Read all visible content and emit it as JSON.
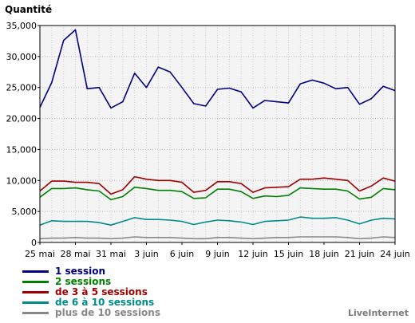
{
  "chart_data": {
    "type": "line",
    "title": "",
    "ylabel": "Quantité",
    "xlabel": "",
    "ylim": [
      0,
      35000
    ],
    "yticks": [
      0,
      5000,
      10000,
      15000,
      20000,
      25000,
      30000,
      35000
    ],
    "ytick_labels": [
      "0",
      "5,000",
      "10,000",
      "15,000",
      "20,000",
      "25,000",
      "30,000",
      "35,000"
    ],
    "x": [
      "25 mai",
      "26 mai",
      "27 mai",
      "28 mai",
      "29 mai",
      "30 mai",
      "31 mai",
      "1 juin",
      "2 juin",
      "3 juin",
      "4 juin",
      "5 juin",
      "6 juin",
      "7 juin",
      "8 juin",
      "9 juin",
      "10 juin",
      "11 juin",
      "12 juin",
      "13 juin",
      "14 juin",
      "15 juin",
      "16 juin",
      "17 juin",
      "18 juin",
      "19 juin",
      "20 juin",
      "21 juin",
      "22 juin",
      "23 juin",
      "24 juin"
    ],
    "xtick_labels": [
      "25 mai",
      "28 mai",
      "31 mai",
      "3 juin",
      "6 juin",
      "9 juin",
      "12 juin",
      "15 juin",
      "18 juin",
      "21 juin",
      "24 juin"
    ],
    "xtick_index": [
      0,
      3,
      6,
      9,
      12,
      15,
      18,
      21,
      24,
      27,
      30
    ],
    "grid": true,
    "legend_position": "bottom",
    "series": [
      {
        "name": "1 session",
        "color": "#000080",
        "values": [
          21800,
          25800,
          32600,
          34300,
          24800,
          25000,
          21700,
          22700,
          27300,
          25000,
          28300,
          27500,
          25000,
          22400,
          22000,
          24700,
          24900,
          24300,
          21700,
          22900,
          22700,
          22500,
          25600,
          26200,
          25700,
          24800,
          25000,
          22300,
          23200,
          25200,
          24500
        ]
      },
      {
        "name": "2 sessions",
        "color": "#008000",
        "values": [
          7300,
          8700,
          8700,
          8800,
          8500,
          8300,
          6900,
          7400,
          8900,
          8700,
          8400,
          8400,
          8200,
          7100,
          7200,
          8600,
          8600,
          8200,
          7100,
          7500,
          7400,
          7600,
          8800,
          8700,
          8600,
          8600,
          8300,
          7000,
          7300,
          8700,
          8500
        ]
      },
      {
        "name": "de 3 à 5 sessions",
        "color": "#a00000",
        "values": [
          8300,
          9900,
          9900,
          9700,
          9700,
          9500,
          7800,
          8500,
          10600,
          10200,
          10000,
          10000,
          9700,
          8100,
          8400,
          9800,
          9800,
          9500,
          8100,
          8800,
          8900,
          9000,
          10200,
          10200,
          10400,
          10200,
          10000,
          8300,
          9100,
          10400,
          9900
        ]
      },
      {
        "name": "de 6 à 10 sessions",
        "color": "#008b8b",
        "values": [
          2800,
          3500,
          3400,
          3400,
          3400,
          3200,
          2800,
          3400,
          4000,
          3700,
          3700,
          3600,
          3400,
          2900,
          3300,
          3600,
          3500,
          3300,
          2900,
          3400,
          3500,
          3600,
          4100,
          3900,
          3900,
          4000,
          3600,
          3000,
          3600,
          3900,
          3800
        ]
      },
      {
        "name": "plus de 10 sessions",
        "color": "#888888",
        "values": [
          600,
          700,
          700,
          800,
          700,
          700,
          600,
          700,
          900,
          800,
          800,
          800,
          700,
          600,
          600,
          800,
          800,
          700,
          600,
          700,
          800,
          800,
          900,
          900,
          900,
          900,
          800,
          600,
          700,
          900,
          800
        ]
      }
    ]
  },
  "brand": "LiveInternet"
}
